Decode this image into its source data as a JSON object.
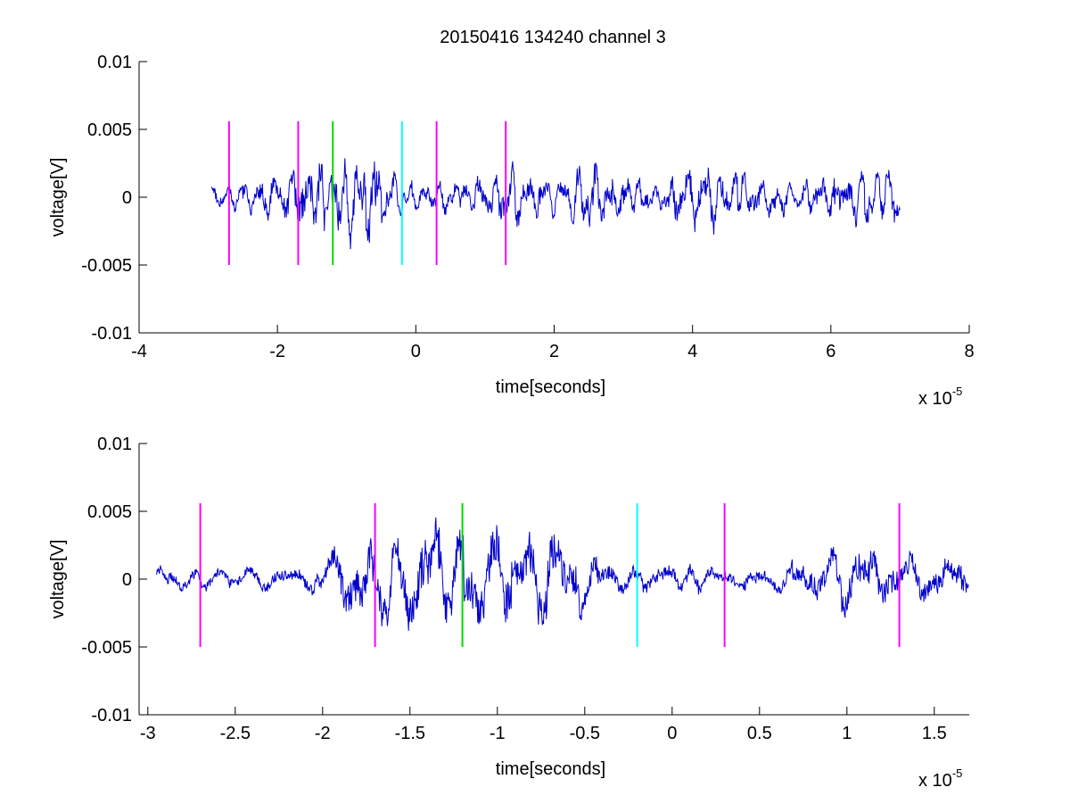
{
  "figure": {
    "title": "20150416 134240 channel 3"
  },
  "colors": {
    "signal": "#0000cc",
    "magenta_marker": "#ff00ff",
    "green_marker": "#00dd00",
    "cyan_marker": "#00ffff",
    "axis": "#000000",
    "background": "#ffffff"
  },
  "chart_data": [
    {
      "type": "line",
      "xlabel": "time[seconds]",
      "ylabel": "voltage[V]",
      "x_multiplier": {
        "base": "x 10",
        "exponent": "-5"
      },
      "xlim": [
        -4,
        8
      ],
      "ylim": [
        -0.01,
        0.01
      ],
      "xticks": [
        -4,
        -2,
        0,
        2,
        4,
        6,
        8
      ],
      "xtick_labels": [
        "-4",
        "-2",
        "0",
        "2",
        "4",
        "6",
        "8"
      ],
      "yticks": [
        -0.01,
        -0.005,
        0,
        0.005,
        0.01
      ],
      "ytick_labels": [
        "-0.01",
        "-0.005",
        "0",
        "0.005",
        "0.01"
      ],
      "grid": false,
      "series": [
        {
          "x_range": [
            -2.95,
            7.0
          ],
          "amplitude_profile": [
            [
              -2.95,
              0.0008
            ],
            [
              -2.5,
              0.0009
            ],
            [
              -2.0,
              0.0016
            ],
            [
              -1.6,
              0.0026
            ],
            [
              -1.3,
              0.0028
            ],
            [
              -1.0,
              0.003
            ],
            [
              -0.7,
              0.0034
            ],
            [
              -0.4,
              0.0016
            ],
            [
              0.0,
              0.0009
            ],
            [
              0.5,
              0.0011
            ],
            [
              1.0,
              0.0014
            ],
            [
              1.4,
              0.0022
            ],
            [
              2.0,
              0.0012
            ],
            [
              2.5,
              0.0024
            ],
            [
              3.0,
              0.0014
            ],
            [
              3.5,
              0.001
            ],
            [
              4.0,
              0.0026
            ],
            [
              4.5,
              0.0018
            ],
            [
              5.0,
              0.0014
            ],
            [
              5.5,
              0.001
            ],
            [
              6.0,
              0.0016
            ],
            [
              6.5,
              0.002
            ],
            [
              7.0,
              0.0024
            ]
          ]
        }
      ],
      "markers": [
        {
          "x": -2.7,
          "color": "magenta",
          "ymin": -0.005,
          "ymax": 0.0056
        },
        {
          "x": -1.7,
          "color": "magenta",
          "ymin": -0.005,
          "ymax": 0.0056
        },
        {
          "x": -1.2,
          "color": "green",
          "ymin": -0.005,
          "ymax": 0.0056
        },
        {
          "x": -0.2,
          "color": "cyan",
          "ymin": -0.005,
          "ymax": 0.0056
        },
        {
          "x": 0.3,
          "color": "magenta",
          "ymin": -0.005,
          "ymax": 0.0056
        },
        {
          "x": 1.3,
          "color": "magenta",
          "ymin": -0.005,
          "ymax": 0.0056
        }
      ]
    },
    {
      "type": "line",
      "xlabel": "time[seconds]",
      "ylabel": "voltage[V]",
      "x_multiplier": {
        "base": "x 10",
        "exponent": "-5"
      },
      "xlim": [
        -3.05,
        1.7
      ],
      "ylim": [
        -0.01,
        0.01
      ],
      "xticks": [
        -3,
        -2.5,
        -2,
        -1.5,
        -1,
        -0.5,
        0,
        0.5,
        1,
        1.5
      ],
      "xtick_labels": [
        "-3",
        "-2.5",
        "-2",
        "-1.5",
        "-1",
        "-0.5",
        "0",
        "0.5",
        "1",
        "1.5"
      ],
      "yticks": [
        -0.01,
        -0.005,
        0,
        0.005,
        0.01
      ],
      "ytick_labels": [
        "-0.01",
        "-0.005",
        "0",
        "0.005",
        "0.01"
      ],
      "grid": false,
      "series": [
        {
          "x_range": [
            -2.95,
            1.7
          ],
          "amplitude_profile": [
            [
              -2.95,
              0.0008
            ],
            [
              -2.6,
              0.0007
            ],
            [
              -2.2,
              0.0009
            ],
            [
              -2.0,
              0.001
            ],
            [
              -1.9,
              0.0024
            ],
            [
              -1.7,
              0.0028
            ],
            [
              -1.5,
              0.0032
            ],
            [
              -1.35,
              0.004
            ],
            [
              -1.2,
              0.003
            ],
            [
              -1.0,
              0.0032
            ],
            [
              -0.8,
              0.0036
            ],
            [
              -0.6,
              0.003
            ],
            [
              -0.4,
              0.0012
            ],
            [
              -0.2,
              0.001
            ],
            [
              0.0,
              0.001
            ],
            [
              0.3,
              0.0008
            ],
            [
              0.6,
              0.0009
            ],
            [
              0.9,
              0.002
            ],
            [
              1.1,
              0.0024
            ],
            [
              1.3,
              0.0018
            ],
            [
              1.5,
              0.0016
            ],
            [
              1.7,
              0.0014
            ]
          ]
        }
      ],
      "markers": [
        {
          "x": -2.7,
          "color": "magenta",
          "ymin": -0.005,
          "ymax": 0.0056
        },
        {
          "x": -1.7,
          "color": "magenta",
          "ymin": -0.005,
          "ymax": 0.0056
        },
        {
          "x": -1.2,
          "color": "green",
          "ymin": -0.005,
          "ymax": 0.0056
        },
        {
          "x": -0.2,
          "color": "cyan",
          "ymin": -0.005,
          "ymax": 0.0056
        },
        {
          "x": 0.3,
          "color": "magenta",
          "ymin": -0.005,
          "ymax": 0.0056
        },
        {
          "x": 1.3,
          "color": "magenta",
          "ymin": -0.005,
          "ymax": 0.0056
        }
      ]
    }
  ]
}
